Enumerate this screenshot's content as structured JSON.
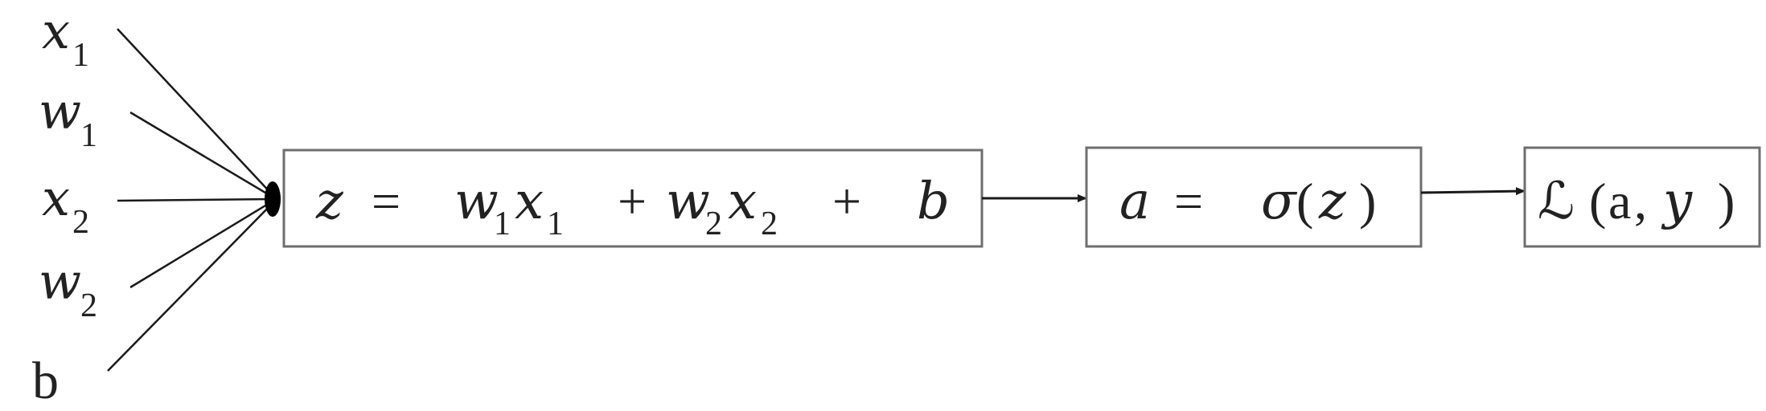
{
  "inputs": {
    "x1": {
      "var": "x",
      "sub": "1"
    },
    "w1": {
      "var": "w",
      "sub": "1"
    },
    "x2": {
      "var": "x",
      "sub": "2"
    },
    "w2": {
      "var": "w",
      "sub": "2"
    },
    "b": {
      "var": "b"
    }
  },
  "box_linear": {
    "lhs": "z",
    "eq": "=",
    "w1": "w",
    "w1_sub": "1",
    "x1": "x",
    "x1_sub": "1",
    "plus1": "+",
    "w2": "w",
    "w2_sub": "2",
    "x2": "x",
    "x2_sub": "2",
    "plus2": "+",
    "b": "b"
  },
  "box_activation": {
    "lhs": "a",
    "eq": "=",
    "sigma": "σ",
    "open": "(",
    "arg": "z",
    "close": ")"
  },
  "box_loss": {
    "symbol": "ℒ",
    "open": "(",
    "a": "a",
    "comma": ",",
    "y": "y",
    "close": ")"
  },
  "colors": {
    "box_border": "#6e6e6e",
    "ink": "#1a1a1a"
  }
}
